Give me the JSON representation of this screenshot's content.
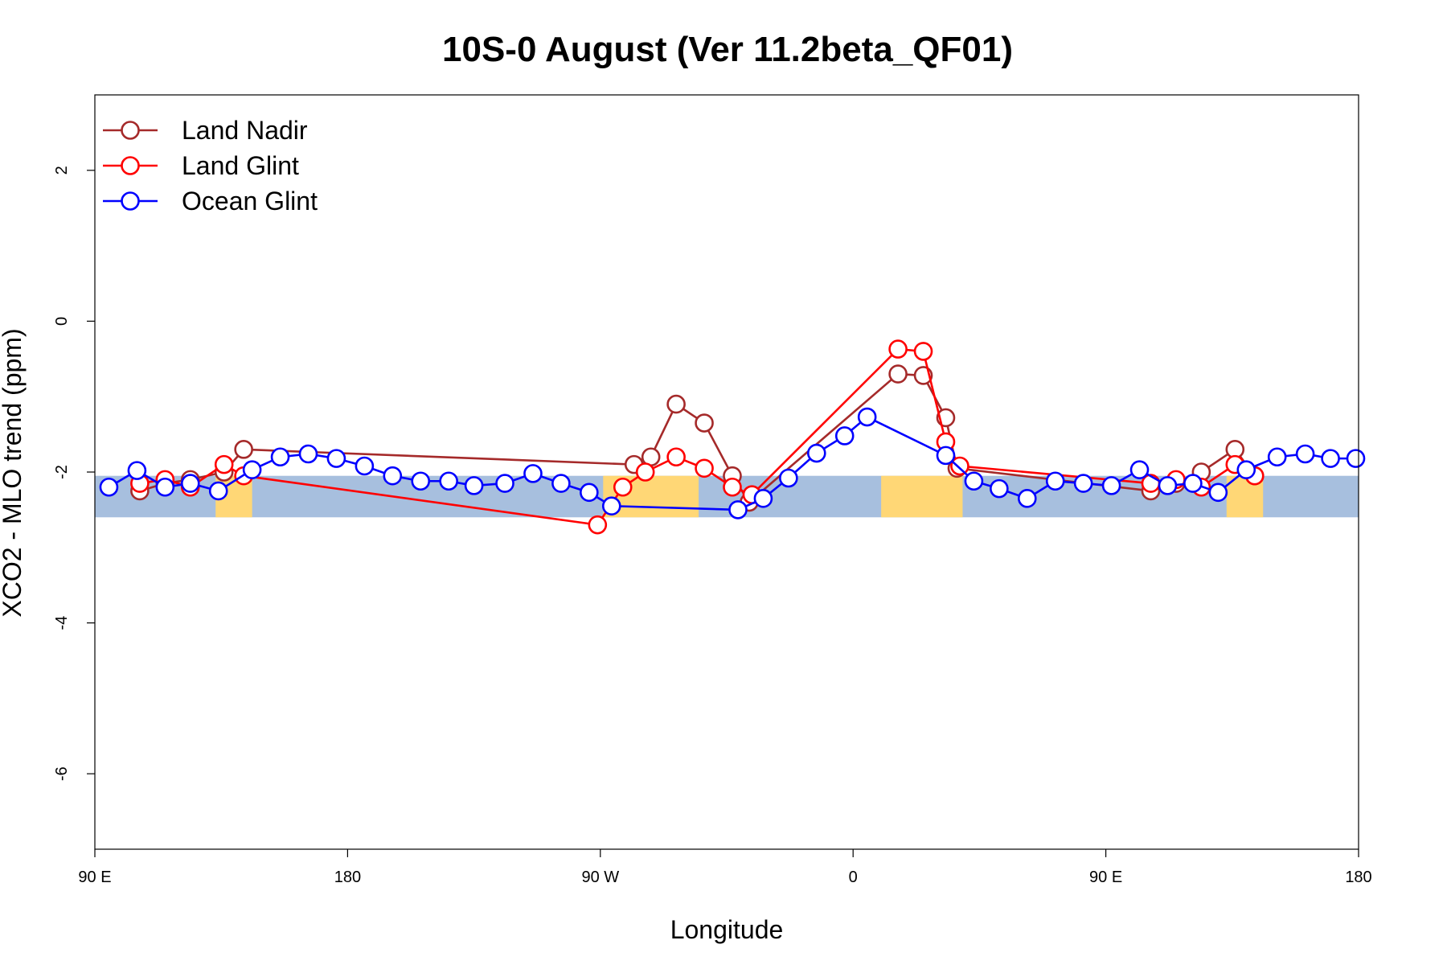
{
  "chart_data": {
    "type": "line",
    "title": "10S-0 August (Ver 11.2beta_QF01)",
    "xlabel": "Longitude",
    "ylabel": "XCO2 - MLO trend (ppm)",
    "x_unit": "degrees east, continuous from 90 E through 180 to 180",
    "xlim": [
      90,
      540
    ],
    "ylim": [
      -7,
      3
    ],
    "x_ticks": [
      {
        "value": 90,
        "label": "90 E"
      },
      {
        "value": 180,
        "label": "180"
      },
      {
        "value": 270,
        "label": "90 W"
      },
      {
        "value": 360,
        "label": "0"
      },
      {
        "value": 450,
        "label": "90 E"
      },
      {
        "value": 540,
        "label": "180"
      }
    ],
    "y_ticks": [
      {
        "value": 2,
        "label": "2"
      },
      {
        "value": 0,
        "label": "0"
      },
      {
        "value": -2,
        "label": "-2"
      },
      {
        "value": -4,
        "label": "-4"
      },
      {
        "value": -6,
        "label": "-6"
      }
    ],
    "background_band": {
      "y_range": [
        -2.6,
        -2.05
      ],
      "ocean_color": "#a7bfde",
      "land_color": "#ffd776"
    },
    "land_x_ranges": [
      [
        133,
        146
      ],
      [
        271,
        305
      ],
      [
        370,
        399
      ],
      [
        493,
        506
      ]
    ],
    "legend_position": "top-left",
    "series": [
      {
        "name": "Land Nadir",
        "color": "#a52a2a",
        "x": [
          106,
          115,
          124,
          136,
          143,
          282,
          288,
          297,
          307,
          317,
          323,
          376,
          385,
          393,
          397,
          466,
          475,
          484,
          496,
          503
        ],
        "y": [
          -2.25,
          -2.15,
          -2.1,
          -2.0,
          -1.7,
          -1.9,
          -1.8,
          -1.1,
          -1.35,
          -2.05,
          -2.4,
          -0.7,
          -0.72,
          -1.28,
          -1.95,
          -2.25,
          -2.15,
          -2.0,
          -1.7,
          -2.05
        ]
      },
      {
        "name": "Land Glint",
        "color": "#ff0000",
        "x": [
          106,
          115,
          124,
          136,
          143,
          269,
          278,
          286,
          297,
          307,
          317,
          324,
          376,
          385,
          393,
          398,
          466,
          475,
          484,
          496,
          503
        ],
        "y": [
          -2.15,
          -2.1,
          -2.2,
          -1.9,
          -2.05,
          -2.7,
          -2.2,
          -2.0,
          -1.8,
          -1.95,
          -2.2,
          -2.3,
          -0.37,
          -0.4,
          -1.6,
          -1.92,
          -2.15,
          -2.1,
          -2.2,
          -1.9,
          -2.05
        ]
      },
      {
        "name": "Ocean Glint",
        "color": "#0000ff",
        "x": [
          95,
          105,
          115,
          124,
          134,
          146,
          156,
          166,
          176,
          186,
          196,
          206,
          216,
          225,
          236,
          246,
          256,
          266,
          274,
          319,
          328,
          337,
          347,
          357,
          365,
          393,
          403,
          412,
          422,
          432,
          442,
          452,
          462,
          472,
          481,
          490,
          500,
          511,
          521,
          530,
          539
        ],
        "y": [
          -2.2,
          -1.98,
          -2.2,
          -2.15,
          -2.25,
          -1.97,
          -1.8,
          -1.76,
          -1.82,
          -1.92,
          -2.05,
          -2.12,
          -2.12,
          -2.18,
          -2.15,
          -2.02,
          -2.15,
          -2.27,
          -2.45,
          -2.5,
          -2.35,
          -2.08,
          -1.75,
          -1.52,
          -1.27,
          -1.78,
          -2.12,
          -2.22,
          -2.35,
          -2.12,
          -2.15,
          -2.18,
          -1.97,
          -2.18,
          -2.15,
          -2.27,
          -1.97,
          -1.8,
          -1.76,
          -1.82,
          -1.82
        ]
      }
    ]
  }
}
